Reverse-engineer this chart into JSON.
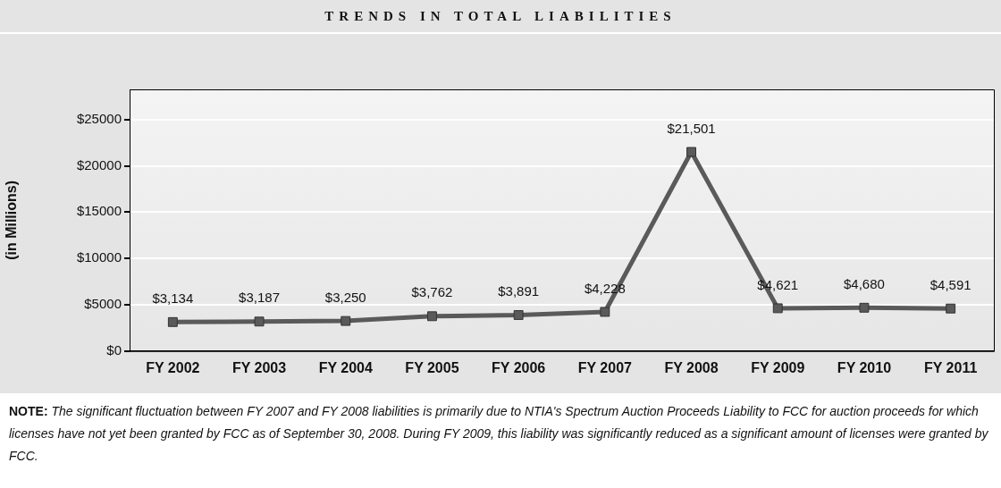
{
  "chart_data": {
    "type": "line",
    "title": "TRENDS IN TOTAL LIABILITIES",
    "ylabel": "(in Millions)",
    "categories": [
      "FY 2002",
      "FY 2003",
      "FY 2004",
      "FY 2005",
      "FY 2006",
      "FY 2007",
      "FY 2008",
      "FY 2009",
      "FY 2010",
      "FY 2011"
    ],
    "series": [
      {
        "color": "#5a5a5a",
        "values": [
          3134,
          3187,
          3250,
          3762,
          3891,
          4228,
          21501,
          4621,
          4680,
          4591
        ],
        "value_labels": [
          "$3,134",
          "$3,187",
          "$3,250",
          "$3,762",
          "$3,891",
          "$4,228",
          "$21,501",
          "$4,621",
          "$4,680",
          "$4,591"
        ]
      }
    ],
    "ylim": [
      0,
      28250
    ],
    "yticks": [
      {
        "value": 0,
        "label": "$0"
      },
      {
        "value": 5000,
        "label": "$5000"
      },
      {
        "value": 10000,
        "label": "$10000"
      },
      {
        "value": 15000,
        "label": "$15000"
      },
      {
        "value": 20000,
        "label": "$20000"
      },
      {
        "value": 25000,
        "label": "$25000"
      }
    ],
    "grid": "y",
    "legend": false,
    "marker": "square",
    "line_style": "solid",
    "annotations": [
      "NOTE:",
      "The significant fluctuation between FY 2007 and FY 2008 liabilities is primarily due to NTIA's Spectrum Auction Proceeds Liability to FCC for auction proceeds for which licenses have not yet been granted by FCC as of September 30, 2008. During FY 2009, this liability was significantly reduced as a significant amount of licenses were granted by FCC."
    ]
  }
}
